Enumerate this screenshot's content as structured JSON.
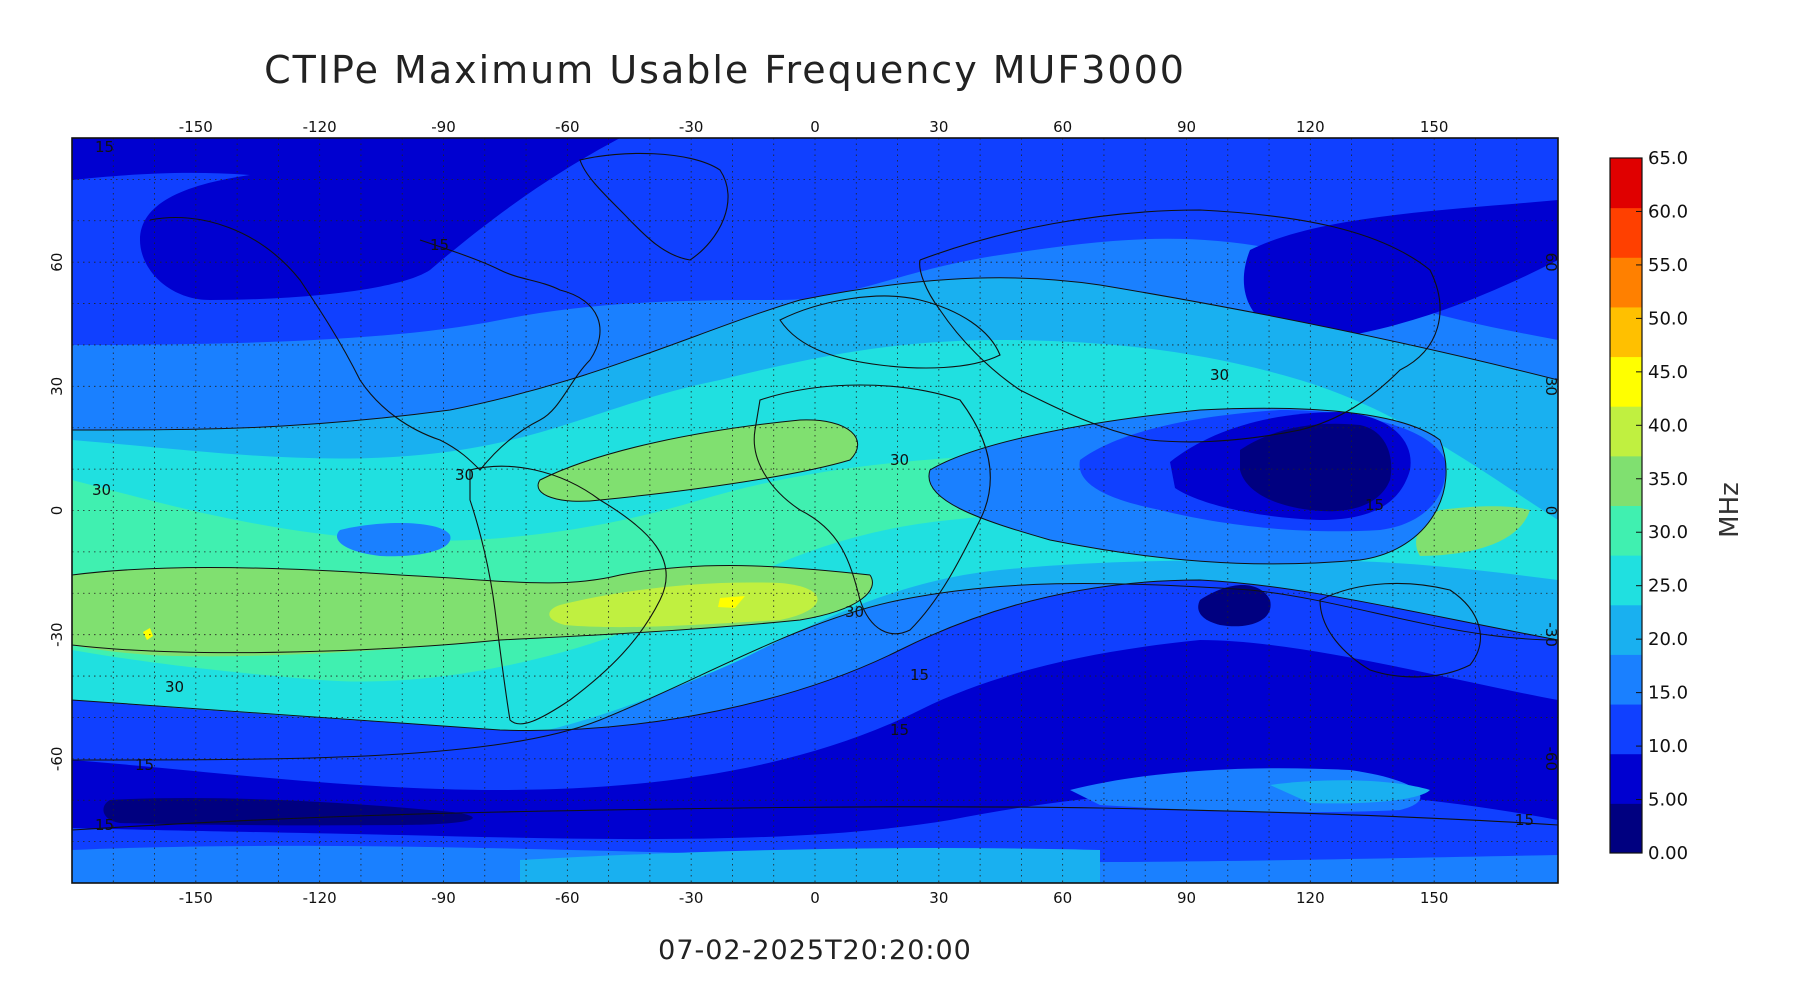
{
  "title": "CTIPe Maximum Usable Frequency MUF3000",
  "timestamp": "07-02-2025T20:20:00",
  "colorbar": {
    "unit": "MHz",
    "tick_labels": [
      "65.0",
      "60.0",
      "55.0",
      "50.0",
      "45.0",
      "40.0",
      "35.0",
      "30.0",
      "25.0",
      "20.0",
      "15.0",
      "10.0",
      "5.00",
      "0.00"
    ],
    "range": [
      0,
      65
    ],
    "colors": [
      "#000080",
      "#0000d0",
      "#1040ff",
      "#1a80ff",
      "#19b0f0",
      "#20e0e0",
      "#40f0b0",
      "#80e070",
      "#c0f040",
      "#ffff00",
      "#ffc000",
      "#ff8000",
      "#ff4000",
      "#e00000"
    ]
  },
  "map": {
    "lon_ticks": [
      "-150",
      "-120",
      "-90",
      "-60",
      "-30",
      "0",
      "30",
      "60",
      "90",
      "120",
      "150"
    ],
    "lat_ticks": [
      "60",
      "30",
      "0",
      "-30",
      "-60"
    ],
    "contour_labels": [
      "15",
      "15",
      "30",
      "30",
      "30",
      "30",
      "30",
      "15",
      "15",
      "15",
      "15",
      "15",
      "30",
      "15"
    ]
  },
  "chart_data": {
    "type": "heatmap",
    "title": "CTIPe Maximum Usable Frequency MUF3000",
    "xlim": [
      -180,
      180
    ],
    "ylim": [
      -90,
      90
    ],
    "colorbar_range": [
      0,
      65
    ],
    "colorbar_unit": "MHz",
    "features": [
      {
        "region": "equatorial Atlantic band",
        "lon": [
          -60,
          15
        ],
        "lat": [
          5,
          20
        ],
        "value": 35
      },
      {
        "region": "South Atlantic / Brazil maximum",
        "lon": [
          -60,
          20
        ],
        "lat": [
          -30,
          -18
        ],
        "value": 40
      },
      {
        "region": "South Pacific band",
        "lon": [
          -180,
          -90
        ],
        "lat": [
          -40,
          -15
        ],
        "value": 35
      },
      {
        "region": "SE Asia minimum",
        "lon": [
          90,
          140
        ],
        "lat": [
          0,
          25
        ],
        "value": 5
      },
      {
        "region": "Arctic North America minimum",
        "lon": [
          -170,
          -80
        ],
        "lat": [
          60,
          85
        ],
        "value": 10
      },
      {
        "region": "Southern high latitudes",
        "lon": [
          -180,
          180
        ],
        "lat": [
          -80,
          -50
        ],
        "value": 10
      }
    ]
  }
}
